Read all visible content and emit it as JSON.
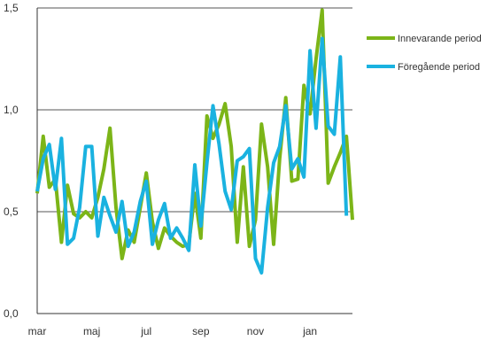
{
  "chart_data": {
    "type": "line",
    "title": "",
    "xlabel": "",
    "ylabel": "",
    "ylim": [
      0,
      1.5
    ],
    "y_ticks": [
      "0,0",
      "0,5",
      "1,0",
      "1,5"
    ],
    "y_tick_values": [
      0,
      0.5,
      1.0,
      1.5
    ],
    "x_tick_labels": [
      "mar",
      "maj",
      "jul",
      "sep",
      "nov",
      "jan"
    ],
    "x_tick_indices": [
      0,
      9,
      18,
      27,
      36,
      45
    ],
    "grid": "horizontal",
    "legend_position": "right",
    "series": [
      {
        "name": "Innevarande period",
        "color": "#7cb518",
        "values": [
          0.59,
          0.87,
          0.62,
          0.66,
          0.35,
          0.63,
          0.49,
          0.47,
          0.5,
          0.47,
          0.57,
          0.71,
          0.91,
          0.52,
          0.27,
          0.41,
          0.35,
          0.52,
          0.69,
          0.45,
          0.32,
          0.42,
          0.38,
          0.35,
          0.33,
          0.34,
          0.59,
          0.37,
          0.97,
          0.86,
          0.93,
          1.03,
          0.82,
          0.35,
          0.72,
          0.33,
          0.46,
          0.93,
          0.72,
          0.34,
          0.76,
          1.06,
          0.65,
          0.66,
          1.12,
          0.98,
          1.25,
          1.49,
          0.64,
          0.72,
          0.79,
          0.87,
          0.46
        ]
      },
      {
        "name": "Föregående period",
        "color": "#1ab2e0",
        "values": [
          0.6,
          0.76,
          0.83,
          0.61,
          0.86,
          0.34,
          0.37,
          0.52,
          0.82,
          0.82,
          0.38,
          0.57,
          0.48,
          0.4,
          0.55,
          0.33,
          0.4,
          0.55,
          0.65,
          0.34,
          0.46,
          0.54,
          0.37,
          0.42,
          0.37,
          0.31,
          0.73,
          0.43,
          0.74,
          1.02,
          0.83,
          0.6,
          0.51,
          0.75,
          0.77,
          0.81,
          0.27,
          0.2,
          0.52,
          0.74,
          0.82,
          1.02,
          0.71,
          0.76,
          0.67,
          1.29,
          0.91,
          1.35,
          0.92,
          0.88,
          1.26,
          0.48
        ]
      }
    ]
  }
}
